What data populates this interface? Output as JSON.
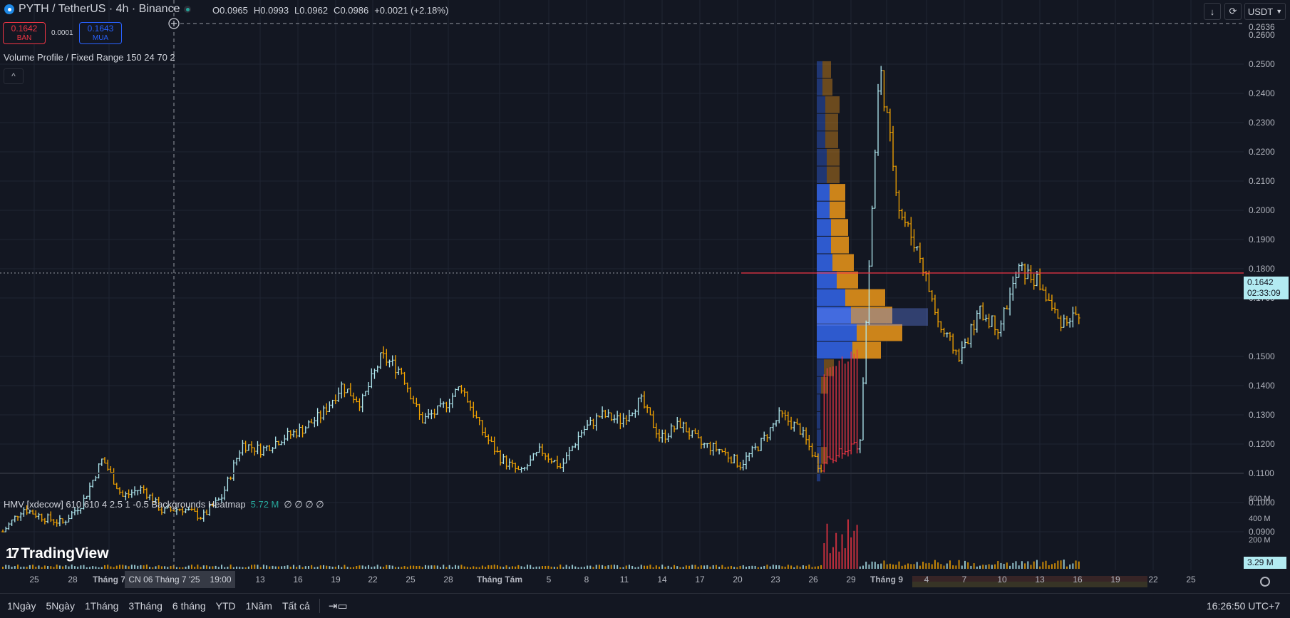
{
  "header": {
    "symbol": "PYTH / TetherUS · 4h · Binance",
    "ohlc": {
      "o_label": "O",
      "o": "0.0965",
      "h_label": "H",
      "h": "0.0993",
      "l_label": "L",
      "l": "0.0962",
      "c_label": "C",
      "c": "0.0986",
      "change": "+0.0021 (+2.18%)"
    }
  },
  "trade": {
    "sell_price": "0.1642",
    "sell_label": "BÁN",
    "spread": "0.0001",
    "buy_price": "0.1643",
    "buy_label": "MUA"
  },
  "indicators": {
    "volume_profile": "Volume Profile / Fixed Range 150 24 70 2",
    "hmv_name": "HMV [xdecow] 610 610 4 2.5 1 -0.5 Backgrounds Heatmap",
    "hmv_value": "5.72 M",
    "hmv_extra": "∅ ∅ ∅ ∅"
  },
  "toolbar_right": {
    "download_icon": "↓",
    "refresh_icon": "⟳",
    "currency": "USDT"
  },
  "price_axis": {
    "labels": [
      "0.2636",
      "0.2600",
      "0.2500",
      "0.2400",
      "0.2300",
      "0.2200",
      "0.2100",
      "0.2000",
      "0.1900",
      "0.1800",
      "0.1700",
      "0.1500",
      "0.1400",
      "0.1300",
      "0.1200",
      "0.1100",
      "0.1000",
      "0.0900"
    ],
    "current_price": "0.1642",
    "countdown": "02:33:09"
  },
  "volume_axis": {
    "labels": [
      "600 M",
      "400 M",
      "200 M"
    ],
    "current": "3.29 M"
  },
  "time_axis": {
    "labels": [
      "25",
      "28",
      "Tháng 7",
      "13",
      "16",
      "19",
      "22",
      "25",
      "28",
      "Tháng Tám",
      "5",
      "8",
      "11",
      "14",
      "17",
      "20",
      "23",
      "26",
      "29",
      "Tháng 9",
      "4",
      "7",
      "10",
      "13",
      "16",
      "19",
      "22",
      "25"
    ],
    "crosshair_date": "CN 06 Tháng 7 '25",
    "crosshair_time": "19:00"
  },
  "bottom_bar": {
    "ranges": [
      "1Ngày",
      "5Ngày",
      "1Tháng",
      "3Tháng",
      "6 tháng",
      "YTD",
      "1Năm",
      "Tất cả"
    ],
    "clock": "16:26:50 UTC+7"
  },
  "branding": {
    "logo": "TradingView"
  },
  "colors": {
    "background": "#131722",
    "up": "#b2ebf2",
    "down": "#f7a600",
    "sell": "#f23645",
    "buy": "#2962ff",
    "price_line": "#f23645",
    "vp_blue": "#2f5ed8",
    "vp_orange": "#d68a1a"
  },
  "chart_data": {
    "type": "candlestick",
    "interval": "4h",
    "ylim": [
      0.085,
      0.263
    ],
    "series": [
      {
        "name": "PYTH / TetherUS",
        "approx_closes": [
          0.09,
          0.098,
          0.095,
          0.093,
          0.1,
          0.115,
          0.102,
          0.105,
          0.097,
          0.098,
          0.095,
          0.102,
          0.12,
          0.118,
          0.122,
          0.125,
          0.13,
          0.14,
          0.134,
          0.15,
          0.145,
          0.128,
          0.132,
          0.14,
          0.125,
          0.115,
          0.11,
          0.118,
          0.112,
          0.124,
          0.13,
          0.128,
          0.135,
          0.122,
          0.127,
          0.12,
          0.118,
          0.113,
          0.12,
          0.13,
          0.125,
          0.112,
          0.118,
          0.12,
          0.25,
          0.2,
          0.185,
          0.16,
          0.15,
          0.165,
          0.16,
          0.18,
          0.175,
          0.162,
          0.1642
        ]
      }
    ]
  }
}
